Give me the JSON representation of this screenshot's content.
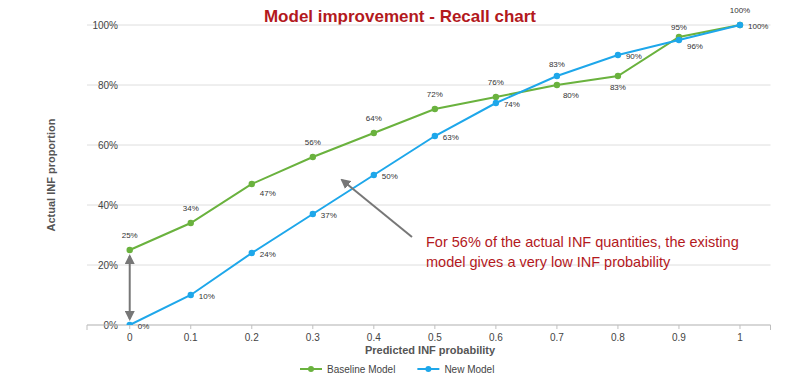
{
  "chart_data": {
    "type": "line",
    "title": "Model improvement - Recall chart",
    "x_label": "Predicted INF probability",
    "y_label": "Actual INF proportion",
    "annotation": [
      "For 56% of the actual INF quantities, the existing",
      "model gives a very low INF probability"
    ],
    "x": [
      0,
      0.1,
      0.2,
      0.3,
      0.4,
      0.5,
      0.6,
      0.7,
      0.8,
      0.9,
      1
    ],
    "xlim": [
      -0.07,
      1.05
    ],
    "xticks": [
      0,
      0.1,
      0.2,
      0.3,
      0.4,
      0.5,
      0.6,
      0.7,
      0.8,
      0.9,
      1
    ],
    "ylim": [
      0,
      100
    ],
    "yticks": [
      {
        "value": 0,
        "label": "0%"
      },
      {
        "value": 20,
        "label": "20%"
      },
      {
        "value": 40,
        "label": "40%"
      },
      {
        "value": 60,
        "label": "60%"
      },
      {
        "value": 80,
        "label": "80%"
      },
      {
        "value": 100,
        "label": "100%"
      }
    ],
    "grid": true,
    "legend": "bottom",
    "data_labels": true,
    "series": [
      {
        "name": "Baseline Model",
        "color": "#6ab23e",
        "marker": "circle",
        "line_style": "solid",
        "values": [
          25,
          34,
          47,
          56,
          64,
          72,
          76,
          80,
          83,
          96,
          100
        ],
        "value_labels": [
          "25%",
          "34%",
          "47%",
          "56%",
          "64%",
          "72%",
          "76%",
          "80%",
          "83%",
          "96%",
          "100%"
        ]
      },
      {
        "name": "New Model",
        "color": "#1ea7ea",
        "marker": "circle",
        "line_style": "solid",
        "values": [
          0,
          10,
          24,
          37,
          50,
          63,
          74,
          83,
          90,
          95,
          100
        ],
        "value_labels": [
          "0%",
          "10%",
          "24%",
          "37%",
          "50%",
          "63%",
          "74%",
          "83%",
          "90%",
          "95%",
          "100%"
        ]
      }
    ]
  }
}
